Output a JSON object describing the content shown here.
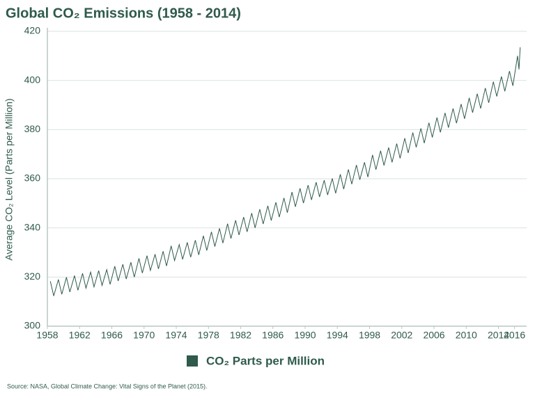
{
  "chart_data": {
    "type": "line",
    "title": "Global CO₂ Emissions (1958 - 2014)",
    "y_label": "Average CO₂ Level (Parts per Million)",
    "source": "Source: NASA, Global Climate Change: Vital Signs of the Planet (2015).",
    "x": [
      1958.37,
      1958.79,
      1959.37,
      1959.79,
      1960.37,
      1960.79,
      1961.37,
      1961.79,
      1962.37,
      1962.79,
      1963.37,
      1963.79,
      1964.37,
      1964.79,
      1965.37,
      1965.79,
      1966.37,
      1966.79,
      1967.37,
      1967.79,
      1968.37,
      1968.79,
      1969.37,
      1969.79,
      1970.37,
      1970.79,
      1971.37,
      1971.79,
      1972.37,
      1972.79,
      1973.37,
      1973.79,
      1974.37,
      1974.79,
      1975.37,
      1975.79,
      1976.37,
      1976.79,
      1977.37,
      1977.79,
      1978.37,
      1978.79,
      1979.37,
      1979.79,
      1980.37,
      1980.79,
      1981.37,
      1981.79,
      1982.37,
      1982.79,
      1983.37,
      1983.79,
      1984.37,
      1984.79,
      1985.37,
      1985.79,
      1986.37,
      1986.79,
      1987.37,
      1987.79,
      1988.37,
      1988.79,
      1989.37,
      1989.79,
      1990.37,
      1990.79,
      1991.37,
      1991.79,
      1992.37,
      1992.79,
      1993.37,
      1993.79,
      1994.37,
      1994.79,
      1995.37,
      1995.79,
      1996.37,
      1996.79,
      1997.37,
      1997.79,
      1998.37,
      1998.79,
      1999.37,
      1999.79,
      2000.37,
      2000.79,
      2001.37,
      2001.79,
      2002.37,
      2002.79,
      2003.37,
      2003.79,
      2004.37,
      2004.79,
      2005.37,
      2005.79,
      2006.37,
      2006.79,
      2007.37,
      2007.79,
      2008.37,
      2008.79,
      2009.37,
      2009.79,
      2010.37,
      2010.79,
      2011.37,
      2011.79,
      2012.37,
      2012.79,
      2013.37,
      2013.79,
      2014.37,
      2014.79,
      2015.37,
      2015.79,
      2016.37,
      2016.55,
      2016.7
    ],
    "series": [
      {
        "name": "CO₂ Parts per Million",
        "color": "#2f5a4c",
        "values": [
          318.3,
          312.3,
          319.0,
          313.0,
          319.9,
          313.9,
          320.6,
          314.6,
          321.5,
          315.5,
          322.0,
          316.0,
          322.6,
          316.6,
          323.0,
          317.0,
          324.4,
          318.4,
          325.2,
          319.2,
          326.0,
          320.0,
          327.6,
          321.6,
          328.7,
          322.7,
          329.3,
          323.3,
          330.5,
          324.5,
          332.7,
          326.7,
          333.2,
          327.2,
          334.1,
          328.1,
          335.0,
          329.0,
          336.8,
          330.8,
          338.4,
          332.4,
          339.8,
          333.8,
          341.7,
          335.7,
          343.1,
          337.1,
          344.4,
          338.4,
          346.0,
          340.0,
          347.6,
          341.6,
          349.0,
          343.0,
          350.4,
          344.4,
          352.2,
          346.2,
          354.6,
          348.6,
          356.1,
          350.1,
          357.4,
          351.4,
          358.6,
          352.6,
          359.4,
          353.4,
          360.1,
          354.1,
          361.8,
          355.8,
          363.8,
          357.8,
          365.6,
          359.6,
          366.7,
          360.7,
          369.7,
          363.7,
          371.4,
          365.4,
          372.7,
          366.7,
          374.3,
          368.3,
          376.5,
          370.5,
          378.8,
          372.8,
          380.5,
          374.5,
          382.8,
          376.8,
          384.9,
          378.9,
          386.8,
          380.8,
          388.6,
          382.6,
          390.4,
          384.4,
          392.9,
          386.9,
          394.6,
          388.6,
          396.9,
          390.9,
          399.5,
          393.5,
          401.6,
          395.6,
          403.8,
          397.8,
          410.0,
          404.5,
          413.5
        ]
      }
    ],
    "xlim": [
      1958,
      2017.5
    ],
    "xticks": [
      1958,
      1962,
      1966,
      1970,
      1974,
      1978,
      1982,
      1986,
      1990,
      1994,
      1998,
      2002,
      2006,
      2010,
      2014,
      2016
    ],
    "ylim": [
      300,
      420
    ],
    "yticks": [
      300,
      320,
      340,
      360,
      380,
      400,
      420
    ],
    "grid": true
  }
}
